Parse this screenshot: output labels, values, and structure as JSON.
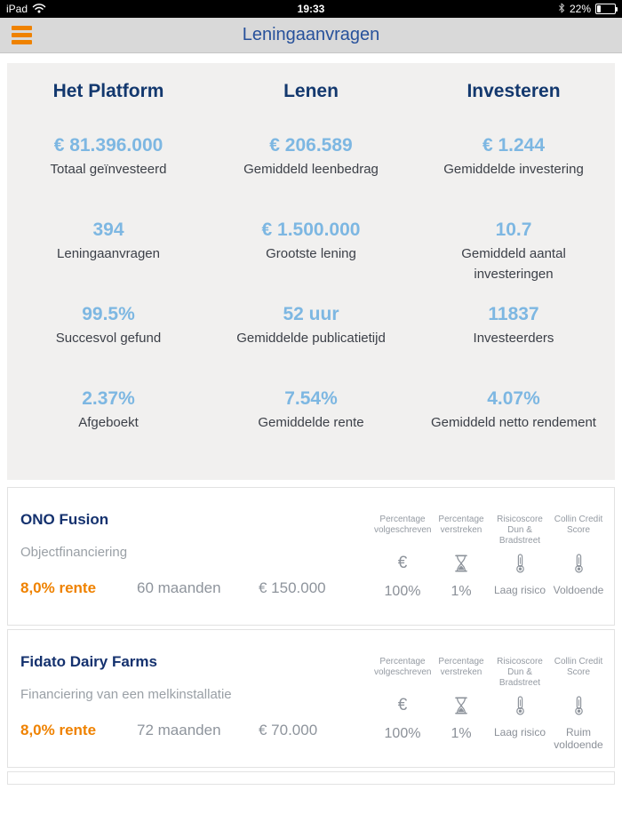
{
  "status_bar": {
    "device": "iPad",
    "time": "19:33",
    "battery_percent": "22%",
    "battery_level": 0.22,
    "icons": [
      "wifi-icon",
      "bluetooth-icon",
      "battery-icon"
    ]
  },
  "header": {
    "title": "Leningaanvragen",
    "menu_icon": "hamburger-menu-icon"
  },
  "colors": {
    "accent_orange": "#ef8200",
    "navy": "#13386e",
    "value_blue": "#7db7e2",
    "nav_title_blue": "#27519b",
    "panel_gray": "#f1f0ef"
  },
  "stats": {
    "columns": [
      {
        "title": "Het Platform",
        "items": [
          {
            "value": "€ 81.396.000",
            "label": "Totaal geïnvesteerd"
          },
          {
            "value": "394",
            "label": "Leningaanvragen"
          },
          {
            "value": "99.5%",
            "label": "Succesvol gefund"
          },
          {
            "value": "2.37%",
            "label": "Afgeboekt"
          }
        ]
      },
      {
        "title": "Lenen",
        "items": [
          {
            "value": "€ 206.589",
            "label": "Gemiddeld leenbedrag"
          },
          {
            "value": "€ 1.500.000",
            "label": "Grootste lening"
          },
          {
            "value": "52 uur",
            "label": "Gemiddelde publicatietijd"
          },
          {
            "value": "7.54%",
            "label": "Gemiddelde rente"
          }
        ]
      },
      {
        "title": "Investeren",
        "items": [
          {
            "value": "€ 1.244",
            "label": "Gemiddelde investering"
          },
          {
            "value": "10.7",
            "label": "Gemiddeld aantal investeringen"
          },
          {
            "value": "11837",
            "label": "Investeerders"
          },
          {
            "value": "4.07%",
            "label": "Gemiddeld netto rendement"
          }
        ]
      }
    ]
  },
  "loans": {
    "euro_glyph": "€",
    "metric_headers": [
      "Percentage volgeschreven",
      "Percentage verstreken",
      "Risicoscore Dun & Bradstreet",
      "Collin Credit Score"
    ],
    "metric_icons": [
      "euro-icon",
      "hourglass-icon",
      "thermometer-icon",
      "thermometer-icon"
    ],
    "items": [
      {
        "name": "ONO Fusion",
        "description": "Objectfinanciering",
        "rente": "8,0% rente",
        "duration": "60 maanden",
        "amount": "€ 150.000",
        "metrics": [
          "100%",
          "1%",
          "Laag risico",
          "Voldoende"
        ]
      },
      {
        "name": "Fidato Dairy Farms",
        "description": "Financiering van een melkinstallatie",
        "rente": "8,0% rente",
        "duration": "72 maanden",
        "amount": "€ 70.000",
        "metrics": [
          "100%",
          "1%",
          "Laag risico",
          "Ruim voldoende"
        ]
      }
    ]
  }
}
